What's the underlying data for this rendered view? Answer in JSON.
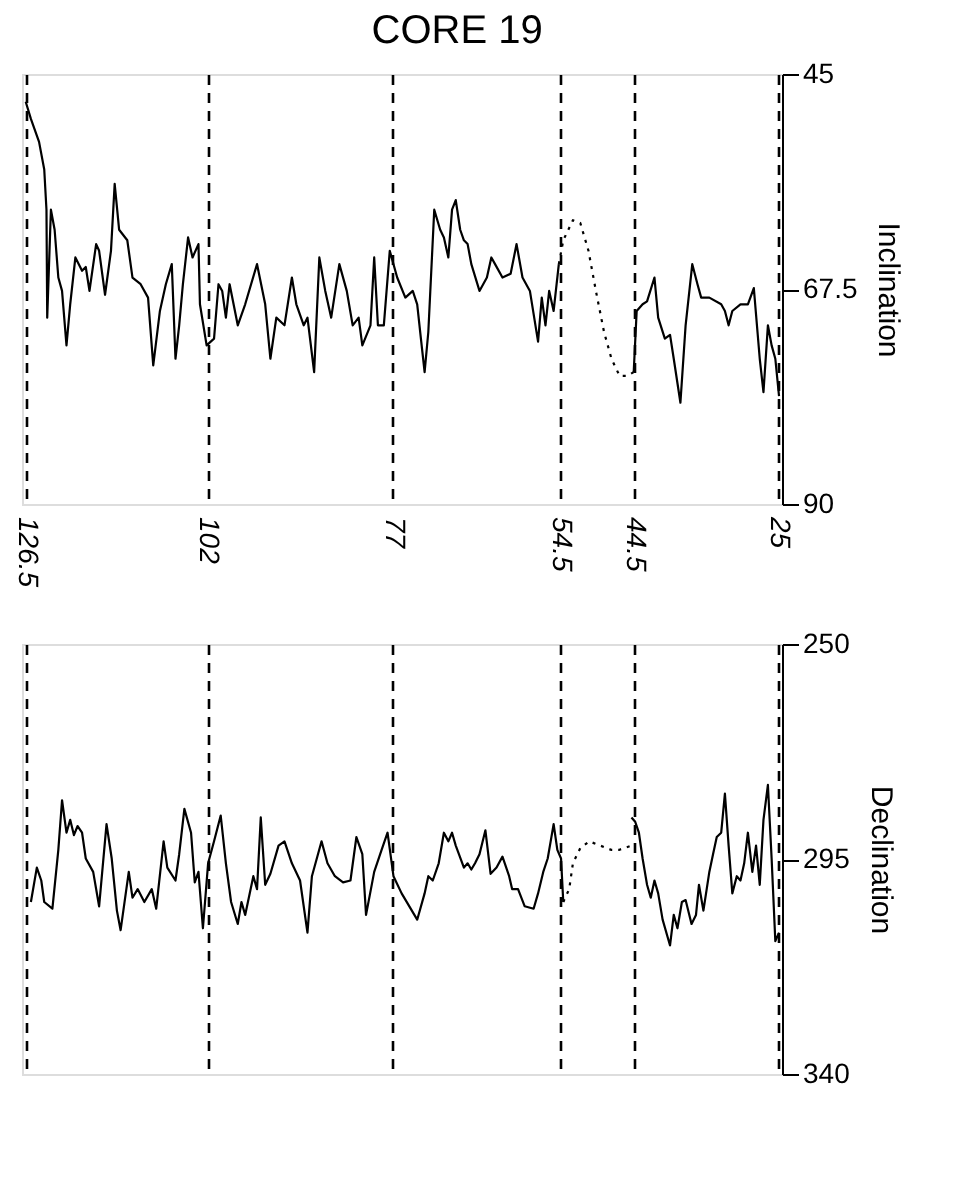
{
  "chart_data": [
    {
      "type": "line",
      "title": "CORE 19",
      "ylabel": "Inclination",
      "xlim": [
        127,
        24.5
      ],
      "xticks": [
        126.5,
        102,
        77,
        54.5,
        44.5,
        25
      ],
      "ylim": [
        90,
        45
      ],
      "yticks": [
        45,
        67.5,
        90
      ],
      "grid": "x",
      "marker": "none",
      "series": [
        {
          "color": "#000000",
          "line_style": "solid",
          "x": [
            126.5,
            125.8,
            124.7,
            124.0,
            123.7,
            123.6,
            123.1,
            122.6,
            122.1,
            121.6,
            121.0,
            120.5,
            119.8,
            118.9,
            118.4,
            117.9,
            117.0,
            116.6,
            115.8,
            115.0,
            114.5,
            113.9,
            112.8,
            112.1,
            111.0,
            110.0,
            109.3,
            108.4,
            107.6,
            106.8,
            106.3,
            105.8,
            105.3,
            104.6,
            104.0,
            103.2,
            103.0,
            102.1,
            101.1,
            100.5,
            100.0,
            99.5,
            99.0,
            97.9,
            96.9,
            95.3,
            94.2,
            93.5,
            92.7,
            91.6,
            90.6,
            90.0,
            89.0,
            88.5,
            87.6,
            86.9,
            86.1,
            85.3,
            84.2,
            83.2,
            82.4,
            81.6,
            81.1,
            80.0,
            79.5,
            79.0,
            78.2,
            77.4,
            76.4,
            75.3,
            74.3,
            73.7,
            73.2,
            72.7,
            72.2,
            71.4,
            70.6,
            70.1,
            69.5,
            69.0,
            68.5,
            67.9,
            67.4,
            66.9,
            66.4,
            65.3,
            64.3,
            63.7,
            63.2,
            62.2,
            61.1,
            60.3,
            59.5,
            58.5,
            57.4,
            56.9,
            56.4,
            55.9,
            55.3,
            54.6,
            49.6,
            44.5,
            44.1,
            43.3,
            42.7,
            41.7,
            41.2,
            40.3,
            39.6,
            39.1,
            38.2,
            37.5,
            36.6,
            35.9,
            35.4,
            34.3,
            32.7,
            32.2,
            31.7,
            31.2,
            30.1,
            29.1,
            28.3,
            27.5,
            27.0,
            26.4,
            25.9,
            25.4,
            24.9
          ],
          "values": [
            47.9,
            49.7,
            52.1,
            55.0,
            59.2,
            70.5,
            59.2,
            61.3,
            66.3,
            67.7,
            73.4,
            69.1,
            64.2,
            65.6,
            65.2,
            67.7,
            62.8,
            63.5,
            68.1,
            63.5,
            56.5,
            61.3,
            62.4,
            66.3,
            67.0,
            68.4,
            75.5,
            69.8,
            67.0,
            64.9,
            74.8,
            71.3,
            67.0,
            62.1,
            64.2,
            62.8,
            69.1,
            73.4,
            72.7,
            67.0,
            67.7,
            70.5,
            67.0,
            71.3,
            69.1,
            64.9,
            69.1,
            74.8,
            70.5,
            71.3,
            66.3,
            69.1,
            71.3,
            70.5,
            76.2,
            64.2,
            67.7,
            70.5,
            64.9,
            67.7,
            71.3,
            70.5,
            73.4,
            71.3,
            64.2,
            71.3,
            71.3,
            63.5,
            66.3,
            68.4,
            67.7,
            69.1,
            72.7,
            76.2,
            72.0,
            59.2,
            61.3,
            62.1,
            64.2,
            59.2,
            58.2,
            61.3,
            62.4,
            62.8,
            64.9,
            67.7,
            66.3,
            64.2,
            64.9,
            66.3,
            65.9,
            62.8,
            66.3,
            67.7,
            73.0,
            68.4,
            71.3,
            67.7,
            69.8,
            64.9,
            null,
            76.2,
            69.8,
            69.1,
            68.8,
            66.3,
            70.5,
            72.7,
            72.3,
            74.8,
            79.4,
            71.3,
            64.9,
            67.0,
            68.4,
            68.4,
            69.1,
            69.8,
            71.3,
            69.8,
            69.1,
            69.1,
            67.4,
            74.8,
            78.3,
            71.3,
            73.4,
            74.8,
            78.7
          ]
        },
        {
          "color": "#000000",
          "line_style": "dotted",
          "x": [
            54.6,
            54.0,
            52.7,
            51.7,
            50.6,
            49.6,
            48.5,
            47.5,
            46.4,
            45.4,
            44.5
          ],
          "values": [
            64.9,
            62.4,
            60.3,
            60.6,
            63.5,
            67.7,
            72.0,
            74.8,
            76.6,
            76.6,
            76.2
          ]
        }
      ]
    },
    {
      "type": "line",
      "ylabel": "Declination",
      "xlim": [
        127,
        24.5
      ],
      "xticks": [
        126.5,
        102,
        77,
        54.5,
        44.5,
        25
      ],
      "ylim": [
        340,
        250
      ],
      "yticks": [
        250,
        295,
        340
      ],
      "grid": "x",
      "tick_labels": "y",
      "marker": "none",
      "series": [
        {
          "color": "#000000",
          "line_style": "solid",
          "x": [
            125.8,
            125.0,
            124.4,
            124.0,
            122.9,
            122.1,
            121.6,
            121.0,
            120.5,
            120.0,
            119.5,
            118.9,
            118.4,
            117.4,
            116.6,
            115.6,
            114.9,
            114.2,
            113.7,
            112.6,
            112.1,
            111.4,
            110.5,
            109.5,
            108.9,
            107.9,
            107.4,
            106.3,
            105.8,
            105.1,
            104.2,
            103.7,
            103.2,
            102.6,
            101.9,
            101.1,
            100.2,
            99.5,
            98.8,
            97.9,
            97.4,
            96.9,
            95.8,
            95.3,
            94.8,
            94.2,
            93.5,
            92.4,
            91.6,
            90.6,
            89.5,
            88.5,
            87.9,
            86.6,
            85.8,
            84.8,
            83.7,
            82.7,
            81.9,
            81.1,
            80.6,
            79.5,
            78.5,
            77.7,
            76.9,
            75.8,
            73.7,
            72.7,
            72.2,
            71.6,
            70.8,
            70.1,
            69.5,
            69.0,
            68.5,
            67.4,
            66.9,
            66.4,
            65.9,
            65.3,
            64.5,
            63.8,
            63.0,
            62.2,
            61.3,
            60.9,
            60.1,
            59.2,
            58.0,
            57.4,
            56.7,
            56.1,
            55.7,
            55.3,
            54.8,
            54.3,
            54.0,
            49.0,
            44.8,
            44.3,
            43.8,
            43.3,
            42.7,
            42.2,
            41.7,
            41.2,
            40.6,
            39.6,
            39.1,
            38.6,
            38.0,
            37.5,
            36.7,
            36.1,
            35.7,
            35.1,
            34.3,
            33.8,
            33.3,
            32.7,
            32.2,
            31.7,
            31.2,
            30.6,
            30.1,
            29.6,
            29.1,
            28.5,
            28.0,
            27.5,
            27.0,
            26.4,
            25.9,
            25.4,
            24.9
          ],
          "values": [
            304.0,
            296.8,
            299.5,
            304.0,
            305.4,
            293.1,
            282.7,
            289.5,
            286.8,
            290.0,
            288.1,
            289.5,
            294.9,
            297.7,
            304.9,
            287.7,
            294.9,
            305.8,
            309.9,
            297.7,
            303.1,
            301.3,
            304.0,
            301.3,
            305.4,
            291.3,
            296.8,
            299.5,
            294.0,
            284.5,
            289.5,
            299.9,
            297.7,
            309.5,
            295.9,
            291.3,
            285.9,
            295.9,
            304.0,
            308.6,
            304.0,
            306.7,
            298.6,
            301.3,
            286.3,
            300.4,
            298.1,
            292.2,
            291.3,
            295.9,
            299.5,
            310.4,
            298.6,
            291.3,
            295.9,
            298.6,
            299.9,
            299.5,
            290.4,
            294.0,
            306.7,
            297.7,
            293.1,
            289.5,
            298.6,
            302.2,
            307.7,
            302.2,
            298.6,
            299.5,
            295.9,
            289.5,
            291.3,
            289.5,
            292.2,
            296.8,
            295.9,
            297.2,
            295.9,
            294.0,
            289.0,
            298.1,
            296.8,
            294.5,
            298.6,
            301.3,
            301.3,
            304.9,
            305.4,
            302.2,
            297.7,
            294.9,
            291.3,
            287.7,
            293.1,
            294.9,
            304.0,
            null,
            286.3,
            287.2,
            289.5,
            294.9,
            300.4,
            303.1,
            299.5,
            302.2,
            307.7,
            313.1,
            306.7,
            309.5,
            304.0,
            303.6,
            308.6,
            306.7,
            300.4,
            305.8,
            297.7,
            294.0,
            290.4,
            289.5,
            281.3,
            292.2,
            302.2,
            298.6,
            299.5,
            295.9,
            289.5,
            297.7,
            292.2,
            300.4,
            286.8,
            279.5,
            294.9,
            312.2,
            310.4
          ]
        },
        {
          "color": "#000000",
          "line_style": "dotted",
          "x": [
            54.0,
            53.2,
            52.7,
            51.7,
            50.5,
            49.0,
            47.5,
            46.5,
            44.8
          ],
          "values": [
            304.0,
            301.3,
            295.9,
            292.7,
            291.3,
            292.2,
            293.1,
            293.1,
            292.2
          ]
        }
      ]
    }
  ]
}
